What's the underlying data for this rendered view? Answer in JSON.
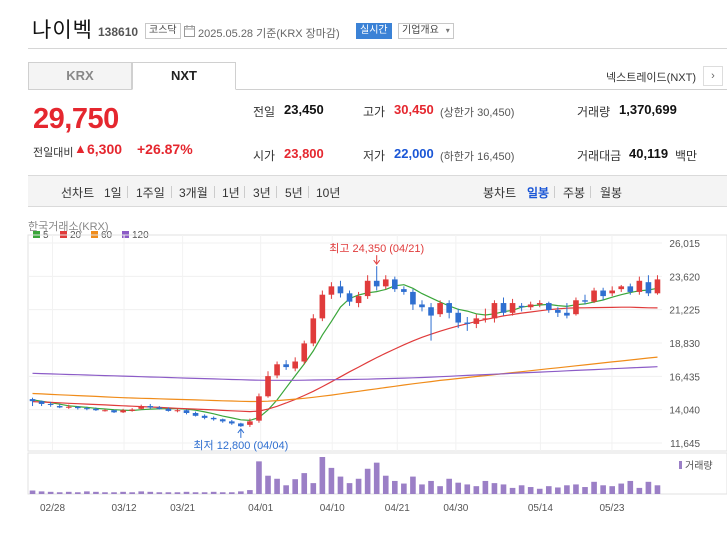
{
  "header": {
    "name": "나이벡",
    "code": "138610",
    "market": "코스닥",
    "date": "2025.05.28  기준(KRX 장마감)",
    "realtime": "실시간",
    "company_info": "기업개요"
  },
  "tabs": [
    "KRX",
    "NXT"
  ],
  "nextrade_label": "넥스트레이드(NXT)",
  "price": {
    "current": "29,750",
    "compare_label": "전일대비",
    "change": "6,300",
    "change_pct": "+26.87%"
  },
  "stats": {
    "prev_label": "전일",
    "prev": "23,450",
    "high_label": "고가",
    "high": "30,450",
    "upper_limit": "(상한가 30,450)",
    "volume_label": "거래량",
    "volume": "1,370,699",
    "open_label": "시가",
    "open": "23,800",
    "low_label": "저가",
    "low": "22,000",
    "lower_limit": "(하한가 16,450)",
    "amount_label": "거래대금",
    "amount": "40,119",
    "amount_unit": "백만"
  },
  "toolbar": {
    "line_label": "선차트",
    "periods": [
      "1일",
      "1주일",
      "3개월",
      "1년",
      "3년",
      "5년",
      "10년"
    ],
    "candle_label": "봉차트",
    "candles": [
      "일봉",
      "주봉",
      "월봉"
    ]
  },
  "chart_source": "한국거래소(KRX)",
  "legend": [
    {
      "label": "5",
      "color": "#3aa63a"
    },
    {
      "label": "20",
      "color": "#e03b3b"
    },
    {
      "label": "60",
      "color": "#f08c1a"
    },
    {
      "label": "120",
      "color": "#8c5cc7"
    }
  ],
  "volume_label": "거래량",
  "chart_data": {
    "type": "candlestick",
    "y_ticks": [
      "26,015",
      "23,620",
      "21,225",
      "18,830",
      "16,435",
      "14,040",
      "11,645"
    ],
    "ylim": [
      11645,
      26015
    ],
    "x_ticks": [
      "02/28",
      "03/12",
      "03/21",
      "04/01",
      "04/10",
      "04/21",
      "04/30",
      "05/14",
      "05/23"
    ],
    "annotations": {
      "high_label": "최고 24,350 (04/21)",
      "low_label": "최저 12,800 (04/04)"
    },
    "candles": [
      [
        14800,
        14650,
        14900,
        14300
      ],
      [
        14650,
        14450,
        14700,
        14300
      ],
      [
        14450,
        14400,
        14600,
        14250
      ],
      [
        14300,
        14200,
        14450,
        14150
      ],
      [
        14200,
        14250,
        14400,
        14100
      ],
      [
        14250,
        14150,
        14300,
        14050
      ],
      [
        14150,
        14100,
        14250,
        14000
      ],
      [
        14100,
        14000,
        14200,
        13950
      ],
      [
        13950,
        14000,
        14100,
        13900
      ],
      [
        14000,
        13850,
        14050,
        13800
      ],
      [
        13850,
        14000,
        14100,
        13800
      ],
      [
        13950,
        14050,
        14150,
        13900
      ],
      [
        14100,
        14300,
        14400,
        14050
      ],
      [
        14300,
        14200,
        14450,
        14100
      ],
      [
        14200,
        14100,
        14300,
        14050
      ],
      [
        14100,
        13950,
        14200,
        13900
      ],
      [
        13950,
        14000,
        14100,
        13850
      ],
      [
        14000,
        13800,
        14050,
        13700
      ],
      [
        13800,
        13600,
        13900,
        13550
      ],
      [
        13600,
        13450,
        13700,
        13350
      ],
      [
        13450,
        13350,
        13550,
        13250
      ],
      [
        13350,
        13200,
        13400,
        13100
      ],
      [
        13200,
        13050,
        13300,
        12950
      ],
      [
        13050,
        12850,
        13100,
        12800
      ],
      [
        12950,
        13200,
        13400,
        12800
      ],
      [
        13250,
        15000,
        15200,
        13100
      ],
      [
        15000,
        16450,
        16800,
        14900
      ],
      [
        16500,
        17300,
        17500,
        16300
      ],
      [
        17300,
        17100,
        17600,
        16900
      ],
      [
        17000,
        17500,
        17800,
        16800
      ],
      [
        17500,
        18800,
        19000,
        17300
      ],
      [
        18800,
        20600,
        20900,
        18600
      ],
      [
        20600,
        22300,
        22600,
        20400
      ],
      [
        22300,
        22900,
        23200,
        22000
      ],
      [
        22900,
        22400,
        23300,
        22100
      ],
      [
        22400,
        21800,
        22600,
        21500
      ],
      [
        21700,
        22200,
        22500,
        21400
      ],
      [
        22200,
        23300,
        23700,
        22000
      ],
      [
        23300,
        22900,
        24350,
        22600
      ],
      [
        22900,
        23400,
        23700,
        22700
      ],
      [
        23400,
        22700,
        23600,
        22500
      ],
      [
        22700,
        22500,
        22900,
        22300
      ],
      [
        22500,
        21600,
        22700,
        21200
      ],
      [
        21600,
        21400,
        21900,
        21100
      ],
      [
        21400,
        20800,
        21700,
        19000
      ],
      [
        20900,
        21700,
        21900,
        20700
      ],
      [
        21700,
        21000,
        21900,
        20600
      ],
      [
        21000,
        20300,
        21300,
        19900
      ],
      [
        20300,
        20200,
        20700,
        19700
      ],
      [
        20200,
        20600,
        20900,
        19900
      ],
      [
        20600,
        20600,
        21300,
        20300
      ],
      [
        20600,
        21700,
        21900,
        20300
      ],
      [
        21700,
        21000,
        22100,
        20800
      ],
      [
        21000,
        21700,
        22000,
        20800
      ],
      [
        21500,
        21400,
        21700,
        21100
      ],
      [
        21400,
        21600,
        21800,
        21200
      ],
      [
        21600,
        21700,
        21900,
        21400
      ],
      [
        21700,
        21200,
        21800,
        21000
      ],
      [
        21200,
        21000,
        21400,
        20700
      ],
      [
        21000,
        20800,
        21700,
        20600
      ],
      [
        20900,
        21900,
        22100,
        20800
      ],
      [
        21900,
        21800,
        22300,
        21600
      ],
      [
        21800,
        22600,
        22800,
        21700
      ],
      [
        22600,
        22200,
        22800,
        21900
      ],
      [
        22400,
        22600,
        22900,
        22200
      ],
      [
        22700,
        22900,
        23000,
        22500
      ],
      [
        22900,
        22500,
        23100,
        22300
      ],
      [
        22500,
        23300,
        23600,
        22300
      ],
      [
        23200,
        22400,
        23700,
        22200
      ],
      [
        22400,
        23400,
        23700,
        22300
      ]
    ],
    "volumes": [
      8,
      6,
      5,
      4,
      5,
      4,
      6,
      5,
      4,
      4,
      5,
      4,
      6,
      5,
      4,
      4,
      4,
      5,
      4,
      4,
      5,
      4,
      4,
      6,
      9,
      75,
      42,
      35,
      20,
      34,
      48,
      25,
      85,
      60,
      40,
      25,
      35,
      58,
      72,
      42,
      30,
      24,
      40,
      22,
      30,
      18,
      35,
      26,
      22,
      18,
      30,
      25,
      22,
      14,
      20,
      16,
      12,
      18,
      15,
      20,
      22,
      16,
      28,
      20,
      18,
      24,
      30,
      14,
      28,
      20
    ],
    "series": [
      {
        "name": "5",
        "values": [
          14750,
          14650,
          14550,
          14430,
          14320,
          14260,
          14200,
          14140,
          14090,
          14040,
          14000,
          13980,
          14040,
          14080,
          14100,
          14110,
          14110,
          14080,
          14000,
          13880,
          13740,
          13580,
          13450,
          13310,
          13270,
          13480,
          14020,
          14740,
          15610,
          16470,
          17320,
          18260,
          19410,
          20380,
          21420,
          22020,
          22280,
          22440,
          22520,
          22680,
          22940,
          23020,
          22760,
          22380,
          22080,
          21770,
          21490,
          21250,
          21120,
          20930,
          20840,
          20930,
          21080,
          21180,
          21400,
          21500,
          21560,
          21600,
          21520,
          21460,
          21580,
          21640,
          21780,
          21920,
          22120,
          22300,
          22460,
          22580,
          22640,
          22760
        ]
      },
      {
        "name": "20",
        "values": [
          14620,
          14590,
          14560,
          14530,
          14500,
          14470,
          14440,
          14410,
          14380,
          14350,
          14320,
          14290,
          14260,
          14230,
          14200,
          14170,
          14140,
          14110,
          14080,
          14050,
          14020,
          13990,
          13960,
          13930,
          13900,
          13940,
          14080,
          14280,
          14520,
          14780,
          15060,
          15360,
          15700,
          16040,
          16400,
          16760,
          17100,
          17440,
          17780,
          18100,
          18400,
          18700,
          18980,
          19240,
          19460,
          19680,
          19880,
          20060,
          20220,
          20380,
          20520,
          20650,
          20780,
          20880,
          20980,
          21060,
          21140,
          21220,
          21280,
          21330,
          21350,
          21360,
          21370,
          21380,
          21390,
          21400,
          21400,
          21380,
          21360,
          21350
        ]
      },
      {
        "name": "60",
        "values": [
          15200,
          15170,
          15140,
          15110,
          15080,
          15050,
          15020,
          14990,
          14960,
          14930,
          14900,
          14880,
          14860,
          14840,
          14820,
          14800,
          14780,
          14760,
          14740,
          14720,
          14700,
          14680,
          14660,
          14640,
          14630,
          14630,
          14650,
          14690,
          14740,
          14800,
          14860,
          14930,
          15010,
          15090,
          15180,
          15270,
          15360,
          15450,
          15540,
          15630,
          15720,
          15810,
          15900,
          15980,
          16060,
          16140,
          16210,
          16280,
          16350,
          16420,
          16490,
          16560,
          16630,
          16700,
          16770,
          16840,
          16910,
          16980,
          17050,
          17120,
          17190,
          17260,
          17330,
          17400,
          17470,
          17540,
          17610,
          17680,
          17750,
          17820
        ]
      },
      {
        "name": "120",
        "values": [
          16650,
          16630,
          16610,
          16590,
          16570,
          16550,
          16530,
          16510,
          16490,
          16470,
          16450,
          16430,
          16410,
          16390,
          16370,
          16350,
          16330,
          16310,
          16290,
          16270,
          16250,
          16230,
          16210,
          16190,
          16170,
          16160,
          16150,
          16150,
          16150,
          16150,
          16160,
          16170,
          16180,
          16190,
          16200,
          16210,
          16220,
          16230,
          16250,
          16270,
          16290,
          16310,
          16330,
          16350,
          16380,
          16410,
          16440,
          16470,
          16500,
          16530,
          16560,
          16590,
          16620,
          16650,
          16680,
          16710,
          16740,
          16770,
          16800,
          16830,
          16860,
          16890,
          16920,
          16950,
          16980,
          17010,
          17040,
          17070,
          17100,
          17130
        ]
      }
    ]
  }
}
